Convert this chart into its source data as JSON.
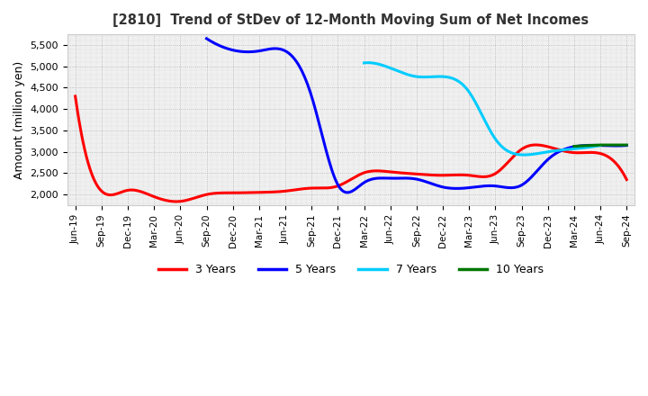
{
  "title": "[2810]  Trend of StDev of 12-Month Moving Sum of Net Incomes",
  "ylabel": "Amount (million yen)",
  "background_color": "#ffffff",
  "plot_bg_color": "#f0f0f0",
  "grid_color": "#aaaaaa",
  "ylim": [
    1750,
    5750
  ],
  "yticks": [
    2000,
    2500,
    3000,
    3500,
    4000,
    4500,
    5000,
    5500
  ],
  "series": {
    "3 Years": {
      "color": "#ff0000",
      "data": [
        [
          "Jun-19",
          4300
        ],
        [
          "Sep-19",
          2080
        ],
        [
          "Dec-19",
          2100
        ],
        [
          "Mar-20",
          1950
        ],
        [
          "Jun-20",
          1840
        ],
        [
          "Sep-20",
          2000
        ],
        [
          "Dec-20",
          2040
        ],
        [
          "Mar-21",
          2050
        ],
        [
          "Jun-21",
          2080
        ],
        [
          "Sep-21",
          2150
        ],
        [
          "Dec-21",
          2200
        ],
        [
          "Mar-22",
          2510
        ],
        [
          "Jun-22",
          2530
        ],
        [
          "Sep-22",
          2480
        ],
        [
          "Dec-22",
          2450
        ],
        [
          "Mar-23",
          2450
        ],
        [
          "Jun-23",
          2490
        ],
        [
          "Sep-23",
          3060
        ],
        [
          "Dec-23",
          3120
        ],
        [
          "Mar-24",
          2980
        ],
        [
          "Jun-24",
          2960
        ],
        [
          "Sep-24",
          2350
        ]
      ]
    },
    "5 Years": {
      "color": "#0000ff",
      "data": [
        [
          "Sep-20",
          5650
        ],
        [
          "Dec-20",
          5380
        ],
        [
          "Mar-21",
          5360
        ],
        [
          "Jun-21",
          5360
        ],
        [
          "Sep-21",
          4300
        ],
        [
          "Dec-21",
          2230
        ],
        [
          "Mar-22",
          2280
        ],
        [
          "Jun-22",
          2380
        ],
        [
          "Sep-22",
          2360
        ],
        [
          "Dec-22",
          2175
        ],
        [
          "Mar-23",
          2160
        ],
        [
          "Jun-23",
          2200
        ],
        [
          "Sep-23",
          2220
        ],
        [
          "Dec-23",
          2820
        ],
        [
          "Mar-24",
          3120
        ],
        [
          "Jun-24",
          3150
        ],
        [
          "Sep-24",
          3150
        ]
      ]
    },
    "7 Years": {
      "color": "#00ccff",
      "data": [
        [
          "Mar-22",
          5080
        ],
        [
          "Jun-22",
          4960
        ],
        [
          "Sep-22",
          4760
        ],
        [
          "Dec-22",
          4760
        ],
        [
          "Mar-23",
          4400
        ],
        [
          "Jun-23",
          3300
        ],
        [
          "Sep-23",
          2930
        ],
        [
          "Dec-23",
          3000
        ],
        [
          "Mar-24",
          3070
        ],
        [
          "Jun-24",
          3150
        ]
      ]
    },
    "10 Years": {
      "color": "#007700",
      "data": [
        [
          "Mar-24",
          3130
        ],
        [
          "Jun-24",
          3160
        ],
        [
          "Sep-24",
          3160
        ]
      ]
    }
  },
  "xtick_labels": [
    "Jun-19",
    "Sep-19",
    "Dec-19",
    "Mar-20",
    "Jun-20",
    "Sep-20",
    "Dec-20",
    "Mar-21",
    "Jun-21",
    "Sep-21",
    "Dec-21",
    "Mar-22",
    "Jun-22",
    "Sep-22",
    "Dec-22",
    "Mar-23",
    "Jun-23",
    "Sep-23",
    "Dec-23",
    "Mar-24",
    "Jun-24",
    "Sep-24"
  ],
  "legend_labels": [
    "3 Years",
    "5 Years",
    "7 Years",
    "10 Years"
  ],
  "legend_colors": [
    "#ff0000",
    "#0000ff",
    "#00ccff",
    "#007700"
  ]
}
